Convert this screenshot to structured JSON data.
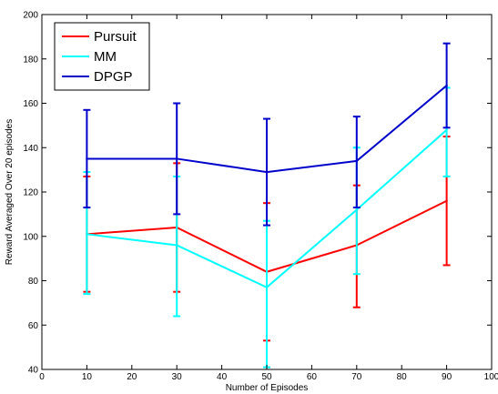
{
  "chart_data": {
    "type": "line",
    "title": "",
    "xlabel": "Number of Episodes",
    "ylabel": "Reward Averaged Over 20 episodes",
    "xlim": [
      0,
      100
    ],
    "ylim": [
      40,
      200
    ],
    "xticks": [
      0,
      10,
      20,
      30,
      40,
      50,
      60,
      70,
      80,
      90,
      100
    ],
    "yticks": [
      40,
      60,
      80,
      100,
      120,
      140,
      160,
      180,
      200
    ],
    "grid": false,
    "legend_position": "top-left",
    "x": [
      10,
      30,
      50,
      70,
      90
    ],
    "series": [
      {
        "name": "Pursuit",
        "color": "#ff0000",
        "values": [
          101,
          104,
          84,
          96,
          116
        ],
        "err_low": [
          75,
          75,
          53,
          68,
          87
        ],
        "err_high": [
          127,
          133,
          115,
          123,
          145
        ]
      },
      {
        "name": "MM",
        "color": "#00ffff",
        "values": [
          101,
          96,
          77,
          112,
          148
        ],
        "err_low": [
          74,
          64,
          41,
          83,
          127
        ],
        "err_high": [
          129,
          127,
          107,
          140,
          167
        ]
      },
      {
        "name": "DPGP",
        "color": "#0000cc",
        "values": [
          135,
          135,
          129,
          134,
          168
        ],
        "err_low": [
          113,
          110,
          105,
          113,
          149
        ],
        "err_high": [
          157,
          160,
          153,
          154,
          187
        ]
      }
    ]
  }
}
